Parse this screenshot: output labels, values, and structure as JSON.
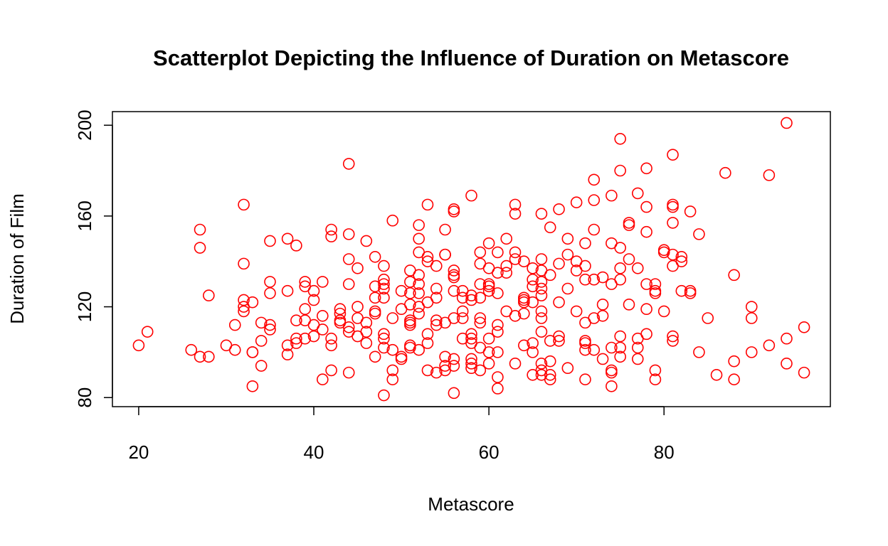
{
  "chart_data": {
    "type": "scatter",
    "title": "Scatterplot Depicting the Influence of Duration on Metascore",
    "xlabel": "Metascore",
    "ylabel": "Duration of Film",
    "xlim": [
      17,
      99
    ],
    "ylim": [
      76,
      206
    ],
    "x_ticks": [
      20,
      40,
      60,
      80
    ],
    "y_ticks": [
      80,
      120,
      160,
      200
    ],
    "grid": false,
    "point_color": "#ff0000",
    "points": [
      [
        20,
        103
      ],
      [
        21,
        109
      ],
      [
        26,
        101
      ],
      [
        27,
        98
      ],
      [
        27,
        146
      ],
      [
        27,
        154
      ],
      [
        28,
        98
      ],
      [
        28,
        125
      ],
      [
        30,
        103
      ],
      [
        31,
        101
      ],
      [
        31,
        112
      ],
      [
        32,
        165
      ],
      [
        32,
        139
      ],
      [
        32,
        123
      ],
      [
        32,
        120
      ],
      [
        32,
        118
      ],
      [
        33,
        122
      ],
      [
        33,
        100
      ],
      [
        33,
        100
      ],
      [
        33,
        85
      ],
      [
        34,
        113
      ],
      [
        34,
        105
      ],
      [
        34,
        94
      ],
      [
        35,
        149
      ],
      [
        35,
        131
      ],
      [
        35,
        126
      ],
      [
        35,
        112
      ],
      [
        35,
        110
      ],
      [
        37,
        150
      ],
      [
        37,
        127
      ],
      [
        37,
        103
      ],
      [
        37,
        99
      ],
      [
        38,
        147
      ],
      [
        38,
        114
      ],
      [
        38,
        106
      ],
      [
        38,
        104
      ],
      [
        39,
        131
      ],
      [
        39,
        129
      ],
      [
        39,
        119
      ],
      [
        39,
        114
      ],
      [
        39,
        106
      ],
      [
        40,
        127
      ],
      [
        40,
        123
      ],
      [
        40,
        112
      ],
      [
        40,
        107
      ],
      [
        41,
        131
      ],
      [
        41,
        116
      ],
      [
        41,
        110
      ],
      [
        41,
        88
      ],
      [
        42,
        154
      ],
      [
        42,
        151
      ],
      [
        42,
        106
      ],
      [
        42,
        103
      ],
      [
        42,
        92
      ],
      [
        43,
        119
      ],
      [
        43,
        117
      ],
      [
        43,
        114
      ],
      [
        43,
        113
      ],
      [
        44,
        183
      ],
      [
        44,
        152
      ],
      [
        44,
        141
      ],
      [
        44,
        130
      ],
      [
        44,
        111
      ],
      [
        44,
        109
      ],
      [
        44,
        91
      ],
      [
        45,
        137
      ],
      [
        45,
        120
      ],
      [
        45,
        115
      ],
      [
        45,
        107
      ],
      [
        46,
        149
      ],
      [
        46,
        113
      ],
      [
        46,
        109
      ],
      [
        46,
        104
      ],
      [
        47,
        142
      ],
      [
        47,
        129
      ],
      [
        47,
        124
      ],
      [
        47,
        118
      ],
      [
        47,
        117
      ],
      [
        47,
        98
      ],
      [
        48,
        138
      ],
      [
        48,
        132
      ],
      [
        48,
        130
      ],
      [
        48,
        128
      ],
      [
        48,
        124
      ],
      [
        48,
        108
      ],
      [
        48,
        106
      ],
      [
        48,
        102
      ],
      [
        48,
        81
      ],
      [
        49,
        158
      ],
      [
        49,
        115
      ],
      [
        49,
        101
      ],
      [
        49,
        92
      ],
      [
        49,
        88
      ],
      [
        50,
        127
      ],
      [
        50,
        119
      ],
      [
        50,
        98
      ],
      [
        50,
        97
      ],
      [
        51,
        136
      ],
      [
        51,
        131
      ],
      [
        51,
        126
      ],
      [
        51,
        121
      ],
      [
        51,
        114
      ],
      [
        51,
        113
      ],
      [
        51,
        112
      ],
      [
        51,
        103
      ],
      [
        51,
        102
      ],
      [
        52,
        156
      ],
      [
        52,
        150
      ],
      [
        52,
        144
      ],
      [
        52,
        134
      ],
      [
        52,
        130
      ],
      [
        52,
        126
      ],
      [
        52,
        120
      ],
      [
        52,
        117
      ],
      [
        52,
        101
      ],
      [
        53,
        165
      ],
      [
        53,
        142
      ],
      [
        53,
        140
      ],
      [
        53,
        122
      ],
      [
        53,
        108
      ],
      [
        53,
        104
      ],
      [
        53,
        92
      ],
      [
        54,
        138
      ],
      [
        54,
        128
      ],
      [
        54,
        124
      ],
      [
        54,
        114
      ],
      [
        54,
        112
      ],
      [
        54,
        91
      ],
      [
        55,
        154
      ],
      [
        55,
        143
      ],
      [
        55,
        143
      ],
      [
        55,
        113
      ],
      [
        55,
        98
      ],
      [
        55,
        94
      ],
      [
        55,
        92
      ],
      [
        56,
        163
      ],
      [
        56,
        162
      ],
      [
        56,
        136
      ],
      [
        56,
        134
      ],
      [
        56,
        133
      ],
      [
        56,
        127
      ],
      [
        56,
        115
      ],
      [
        56,
        97
      ],
      [
        56,
        94
      ],
      [
        56,
        82
      ],
      [
        57,
        127
      ],
      [
        57,
        124
      ],
      [
        57,
        118
      ],
      [
        57,
        115
      ],
      [
        57,
        106
      ],
      [
        58,
        169
      ],
      [
        58,
        125
      ],
      [
        58,
        123
      ],
      [
        58,
        108
      ],
      [
        58,
        106
      ],
      [
        58,
        104
      ],
      [
        58,
        97
      ],
      [
        58,
        95
      ],
      [
        58,
        93
      ],
      [
        59,
        144
      ],
      [
        59,
        139
      ],
      [
        59,
        130
      ],
      [
        59,
        124
      ],
      [
        59,
        115
      ],
      [
        59,
        113
      ],
      [
        59,
        102
      ],
      [
        59,
        92
      ],
      [
        60,
        148
      ],
      [
        60,
        137
      ],
      [
        60,
        130
      ],
      [
        60,
        129
      ],
      [
        60,
        127
      ],
      [
        60,
        106
      ],
      [
        60,
        100
      ],
      [
        60,
        95
      ],
      [
        61,
        144
      ],
      [
        61,
        135
      ],
      [
        61,
        126
      ],
      [
        61,
        112
      ],
      [
        61,
        109
      ],
      [
        61,
        100
      ],
      [
        61,
        89
      ],
      [
        61,
        84
      ],
      [
        62,
        150
      ],
      [
        62,
        138
      ],
      [
        62,
        135
      ],
      [
        62,
        118
      ],
      [
        63,
        165
      ],
      [
        63,
        161
      ],
      [
        63,
        144
      ],
      [
        63,
        141
      ],
      [
        63,
        116
      ],
      [
        63,
        95
      ],
      [
        64,
        140
      ],
      [
        64,
        124
      ],
      [
        64,
        123
      ],
      [
        64,
        122
      ],
      [
        64,
        117
      ],
      [
        64,
        103
      ],
      [
        65,
        137
      ],
      [
        65,
        132
      ],
      [
        65,
        129
      ],
      [
        65,
        122
      ],
      [
        65,
        104
      ],
      [
        65,
        100
      ],
      [
        65,
        90
      ],
      [
        66,
        161
      ],
      [
        66,
        141
      ],
      [
        66,
        136
      ],
      [
        66,
        131
      ],
      [
        66,
        128
      ],
      [
        66,
        125
      ],
      [
        66,
        118
      ],
      [
        66,
        115
      ],
      [
        66,
        109
      ],
      [
        66,
        95
      ],
      [
        66,
        92
      ],
      [
        66,
        90
      ],
      [
        67,
        155
      ],
      [
        67,
        134
      ],
      [
        67,
        105
      ],
      [
        67,
        96
      ],
      [
        67,
        90
      ],
      [
        67,
        88
      ],
      [
        68,
        163
      ],
      [
        68,
        139
      ],
      [
        68,
        122
      ],
      [
        68,
        107
      ],
      [
        68,
        105
      ],
      [
        69,
        150
      ],
      [
        69,
        143
      ],
      [
        69,
        128
      ],
      [
        69,
        93
      ],
      [
        70,
        166
      ],
      [
        70,
        140
      ],
      [
        70,
        136
      ],
      [
        70,
        118
      ],
      [
        71,
        148
      ],
      [
        71,
        138
      ],
      [
        71,
        132
      ],
      [
        71,
        113
      ],
      [
        71,
        105
      ],
      [
        71,
        104
      ],
      [
        71,
        101
      ],
      [
        71,
        88
      ],
      [
        72,
        176
      ],
      [
        72,
        167
      ],
      [
        72,
        154
      ],
      [
        72,
        132
      ],
      [
        72,
        115
      ],
      [
        72,
        101
      ],
      [
        73,
        133
      ],
      [
        73,
        121
      ],
      [
        73,
        116
      ],
      [
        73,
        97
      ],
      [
        74,
        169
      ],
      [
        74,
        148
      ],
      [
        74,
        130
      ],
      [
        74,
        102
      ],
      [
        74,
        92
      ],
      [
        74,
        91
      ],
      [
        74,
        85
      ],
      [
        75,
        194
      ],
      [
        75,
        180
      ],
      [
        75,
        146
      ],
      [
        75,
        137
      ],
      [
        75,
        132
      ],
      [
        75,
        107
      ],
      [
        75,
        102
      ],
      [
        75,
        98
      ],
      [
        76,
        157
      ],
      [
        76,
        156
      ],
      [
        76,
        141
      ],
      [
        76,
        121
      ],
      [
        77,
        170
      ],
      [
        77,
        137
      ],
      [
        77,
        106
      ],
      [
        77,
        102
      ],
      [
        77,
        97
      ],
      [
        78,
        181
      ],
      [
        78,
        164
      ],
      [
        78,
        153
      ],
      [
        78,
        130
      ],
      [
        78,
        119
      ],
      [
        78,
        108
      ],
      [
        79,
        130
      ],
      [
        79,
        127
      ],
      [
        79,
        126
      ],
      [
        79,
        92
      ],
      [
        79,
        88
      ],
      [
        80,
        145
      ],
      [
        80,
        144
      ],
      [
        80,
        118
      ],
      [
        81,
        187
      ],
      [
        81,
        165
      ],
      [
        81,
        164
      ],
      [
        81,
        157
      ],
      [
        81,
        143
      ],
      [
        81,
        138
      ],
      [
        81,
        107
      ],
      [
        81,
        105
      ],
      [
        82,
        142
      ],
      [
        82,
        140
      ],
      [
        82,
        127
      ],
      [
        83,
        162
      ],
      [
        83,
        127
      ],
      [
        83,
        126
      ],
      [
        84,
        152
      ],
      [
        84,
        100
      ],
      [
        85,
        115
      ],
      [
        86,
        90
      ],
      [
        87,
        179
      ],
      [
        88,
        134
      ],
      [
        88,
        96
      ],
      [
        88,
        88
      ],
      [
        90,
        120
      ],
      [
        90,
        115
      ],
      [
        90,
        100
      ],
      [
        92,
        178
      ],
      [
        92,
        103
      ],
      [
        94,
        201
      ],
      [
        94,
        106
      ],
      [
        94,
        95
      ],
      [
        96,
        111
      ],
      [
        96,
        91
      ]
    ]
  }
}
